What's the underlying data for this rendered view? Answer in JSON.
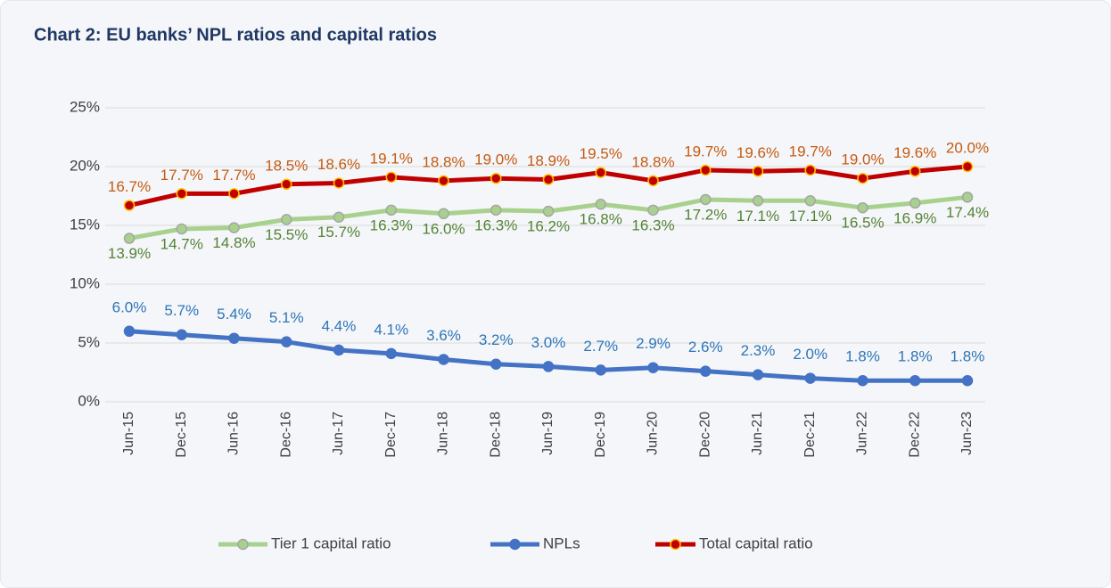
{
  "chart_data": {
    "type": "line",
    "title": "Chart 2: EU banks’ NPL ratios and capital ratios",
    "categories": [
      "Jun-15",
      "Dec-15",
      "Jun-16",
      "Dec-16",
      "Jun-17",
      "Dec-17",
      "Jun-18",
      "Dec-18",
      "Jun-19",
      "Dec-19",
      "Jun-20",
      "Dec-20",
      "Jun-21",
      "Dec-21",
      "Jun-22",
      "Dec-22",
      "Jun-23"
    ],
    "ylim": [
      0,
      25
    ],
    "yticks": [
      {
        "value": 0,
        "label": "0%"
      },
      {
        "value": 5,
        "label": "5%"
      },
      {
        "value": 10,
        "label": "10%"
      },
      {
        "value": 15,
        "label": "15%"
      },
      {
        "value": 20,
        "label": "20%"
      },
      {
        "value": 25,
        "label": "25%"
      }
    ],
    "grid": true,
    "legend": "bottom",
    "series": [
      {
        "name": "Tier 1 capital ratio",
        "color": "#a9d18e",
        "marker_stroke": "#a5a5a5",
        "label_color": "#548235",
        "label_position": "below",
        "values": [
          13.9,
          14.7,
          14.8,
          15.5,
          15.7,
          16.3,
          16.0,
          16.3,
          16.2,
          16.8,
          16.3,
          17.2,
          17.1,
          17.1,
          16.5,
          16.9,
          17.4
        ],
        "value_labels": [
          "13.9%",
          "14.7%",
          "14.8%",
          "15.5%",
          "15.7%",
          "16.3%",
          "16.0%",
          "16.3%",
          "16.2%",
          "16.8%",
          "16.3%",
          "17.2%",
          "17.1%",
          "17.1%",
          "16.5%",
          "16.9%",
          "17.4%"
        ]
      },
      {
        "name": "NPLs",
        "color": "#4472c4",
        "marker_stroke": "#4472c4",
        "label_color": "#2e75b6",
        "label_position": "above",
        "values": [
          6.0,
          5.7,
          5.4,
          5.1,
          4.4,
          4.1,
          3.6,
          3.2,
          3.0,
          2.7,
          2.9,
          2.6,
          2.3,
          2.0,
          1.8,
          1.8,
          1.8
        ],
        "value_labels": [
          "6.0%",
          "5.7%",
          "5.4%",
          "5.1%",
          "4.4%",
          "4.1%",
          "3.6%",
          "3.2%",
          "3.0%",
          "2.7%",
          "2.9%",
          "2.6%",
          "2.3%",
          "2.0%",
          "1.8%",
          "1.8%",
          "1.8%"
        ]
      },
      {
        "name": "Total capital ratio",
        "color": "#c00000",
        "marker_stroke": "#ffc000",
        "label_color": "#c55a11",
        "label_position": "above",
        "values": [
          16.7,
          17.7,
          17.7,
          18.5,
          18.6,
          19.1,
          18.8,
          19.0,
          18.9,
          19.5,
          18.8,
          19.7,
          19.6,
          19.7,
          19.0,
          19.6,
          20.0
        ],
        "value_labels": [
          "16.7%",
          "17.7%",
          "17.7%",
          "18.5%",
          "18.6%",
          "19.1%",
          "18.8%",
          "19.0%",
          "18.9%",
          "19.5%",
          "18.8%",
          "19.7%",
          "19.6%",
          "19.7%",
          "19.0%",
          "19.6%",
          "20.0%"
        ]
      }
    ]
  }
}
